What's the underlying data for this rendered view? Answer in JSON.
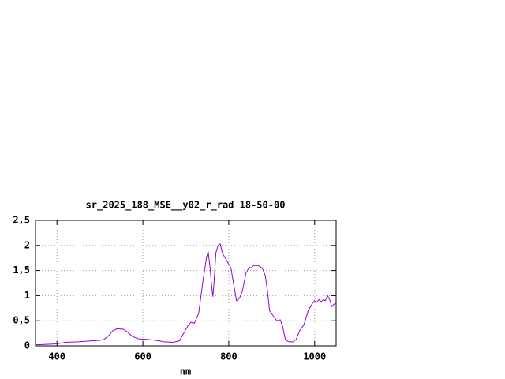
{
  "chart_data": {
    "type": "line",
    "title": "sr_2025_188_MSE__y02_r_rad 18-50-00",
    "x_label": "nm",
    "x": [
      350,
      400,
      420,
      450,
      480,
      500,
      510,
      520,
      530,
      540,
      555,
      565,
      575,
      590,
      610,
      630,
      650,
      670,
      685,
      695,
      705,
      712,
      720,
      730,
      740,
      748,
      752,
      756,
      760,
      763,
      766,
      770,
      775,
      780,
      785,
      795,
      805,
      812,
      818,
      825,
      832,
      840,
      848,
      852,
      858,
      868,
      878,
      885,
      890,
      895,
      905,
      912,
      920,
      925,
      932,
      940,
      950,
      957,
      965,
      975,
      985,
      995,
      1000,
      1005,
      1010,
      1015,
      1020,
      1025,
      1030,
      1035,
      1040,
      1045,
      1050
    ],
    "series": [
      {
        "color": "#9400d3",
        "values": [
          0.02,
          0.04,
          0.07,
          0.08,
          0.1,
          0.11,
          0.13,
          0.2,
          0.3,
          0.34,
          0.33,
          0.27,
          0.19,
          0.14,
          0.13,
          0.11,
          0.08,
          0.07,
          0.1,
          0.25,
          0.4,
          0.47,
          0.45,
          0.65,
          1.3,
          1.75,
          1.88,
          1.6,
          1.2,
          0.98,
          1.3,
          1.85,
          2.0,
          2.03,
          1.85,
          1.7,
          1.55,
          1.2,
          0.9,
          0.95,
          1.1,
          1.45,
          1.57,
          1.55,
          1.6,
          1.6,
          1.55,
          1.4,
          1.1,
          0.7,
          0.58,
          0.5,
          0.52,
          0.4,
          0.12,
          0.08,
          0.08,
          0.13,
          0.3,
          0.42,
          0.7,
          0.85,
          0.9,
          0.87,
          0.92,
          0.88,
          0.92,
          0.9,
          1.0,
          0.92,
          0.78,
          0.83,
          0.85
        ]
      }
    ],
    "xlim": [
      350,
      1050
    ],
    "xticks": [
      400,
      600,
      800,
      1000
    ],
    "ylim": [
      0,
      2.5
    ],
    "yticks": [
      0,
      {
        "value": 0.5,
        "label": "0,5"
      },
      1,
      {
        "value": 1.5,
        "label": "1,5"
      },
      2,
      {
        "value": 2.5,
        "label": "2,5"
      }
    ],
    "grid": true
  }
}
